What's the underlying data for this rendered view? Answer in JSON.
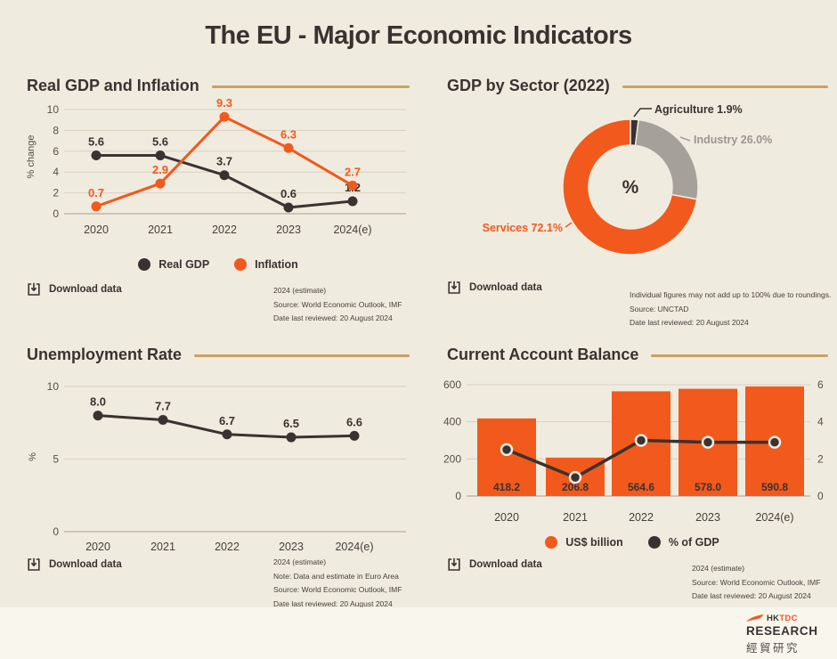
{
  "page": {
    "title": "The EU - Major Economic Indicators"
  },
  "colors": {
    "background": "#f0ebdf",
    "footer_background": "#f9f6ee",
    "accent_orange": "#f2591c",
    "dark": "#3a3230",
    "gray_slice": "#a5a09a",
    "divider_gold": "#c9a164",
    "gridline": "#d8d1c1",
    "tick_text": "#55504a"
  },
  "download_label": "Download data",
  "sections": [
    {
      "title": "Real GDP and Inflation",
      "legend": [
        {
          "label": "Real GDP"
        },
        {
          "label": "Inflation"
        }
      ],
      "notes": [
        "2024 (estimate)",
        "Source: World Economic Outlook, IMF",
        "Date last reviewed: 20 August 2024"
      ]
    },
    {
      "title": "GDP by Sector (2022)",
      "notes": [
        "Individual figures may not add up to 100% due to roundings.",
        "Source: UNCTAD",
        "Date last reviewed: 20 August 2024"
      ]
    },
    {
      "title": "Unemployment Rate",
      "notes": [
        "2024 (estimate)",
        "Note: Data and estimate in Euro Area",
        "Source: World Economic Outlook, IMF",
        "Date last reviewed: 20 August 2024"
      ]
    },
    {
      "title": "Current Account Balance",
      "legend": [
        {
          "label": "US$ billion"
        },
        {
          "label": "% of GDP"
        }
      ],
      "notes": [
        "2024 (estimate)",
        "Source: World Economic Outlook, IMF",
        "Date last reviewed: 20 August 2024"
      ]
    }
  ],
  "chart_data": [
    {
      "id": "gdp-inflation",
      "type": "line",
      "title": "Real GDP and Inflation",
      "categories": [
        "2020",
        "2021",
        "2022",
        "2023",
        "2024(e)"
      ],
      "series": [
        {
          "name": "Real GDP",
          "values": [
            5.6,
            5.6,
            3.7,
            0.6,
            1.2
          ],
          "color": "#3a3230"
        },
        {
          "name": "Inflation",
          "values": [
            0.7,
            2.9,
            9.3,
            6.3,
            2.7
          ],
          "color": "#f2591c"
        }
      ],
      "ylabel": "% change",
      "yticks": [
        0,
        2,
        4,
        6,
        8,
        10
      ],
      "ylim": [
        0,
        10
      ],
      "point_labels": true,
      "grid": true,
      "legend_position": "bottom"
    },
    {
      "id": "gdp-sector",
      "type": "pie",
      "donut": true,
      "title": "GDP by Sector (2022)",
      "center_label": "%",
      "slices": [
        {
          "label": "Agriculture",
          "value": 1.9,
          "display": "Agriculture 1.9%",
          "color": "#3a3230"
        },
        {
          "label": "Industry",
          "value": 26.0,
          "display": "Industry 26.0%",
          "color": "#a5a09a"
        },
        {
          "label": "Services",
          "value": 72.1,
          "display": "Services 72.1%",
          "color": "#f2591c"
        }
      ]
    },
    {
      "id": "unemployment",
      "type": "line",
      "title": "Unemployment Rate",
      "categories": [
        "2020",
        "2021",
        "2022",
        "2023",
        "2024(e)"
      ],
      "series": [
        {
          "name": "Unemployment rate",
          "values": [
            8.0,
            7.7,
            6.7,
            6.5,
            6.6
          ],
          "color": "#3a3230"
        }
      ],
      "ylabel": "%",
      "yticks": [
        0,
        5,
        10
      ],
      "ylim": [
        0,
        10
      ],
      "point_labels": true,
      "grid": true
    },
    {
      "id": "current-account",
      "type": "bar+line",
      "title": "Current Account Balance",
      "categories": [
        "2020",
        "2021",
        "2022",
        "2023",
        "2024(e)"
      ],
      "bar_series": {
        "name": "US$ billion",
        "values": [
          418.2,
          206.8,
          564.6,
          578.0,
          590.8
        ],
        "color": "#f2591c"
      },
      "line_series": {
        "name": "% of GDP",
        "values_estimated_from_plot": [
          2.5,
          1.0,
          3.0,
          2.9,
          2.9
        ],
        "color": "#3a3230"
      },
      "left_yticks": [
        0,
        200,
        400,
        600
      ],
      "left_ylim": [
        0,
        600
      ],
      "right_yticks": [
        0,
        2,
        4,
        6
      ],
      "right_ylim": [
        0,
        6
      ],
      "bar_labels": true,
      "grid": true,
      "legend_position": "bottom"
    }
  ],
  "footer": {
    "brand_hk": "HK",
    "brand_tdc": "TDC",
    "research": "RESEARCH",
    "chinese": "經貿研究"
  }
}
